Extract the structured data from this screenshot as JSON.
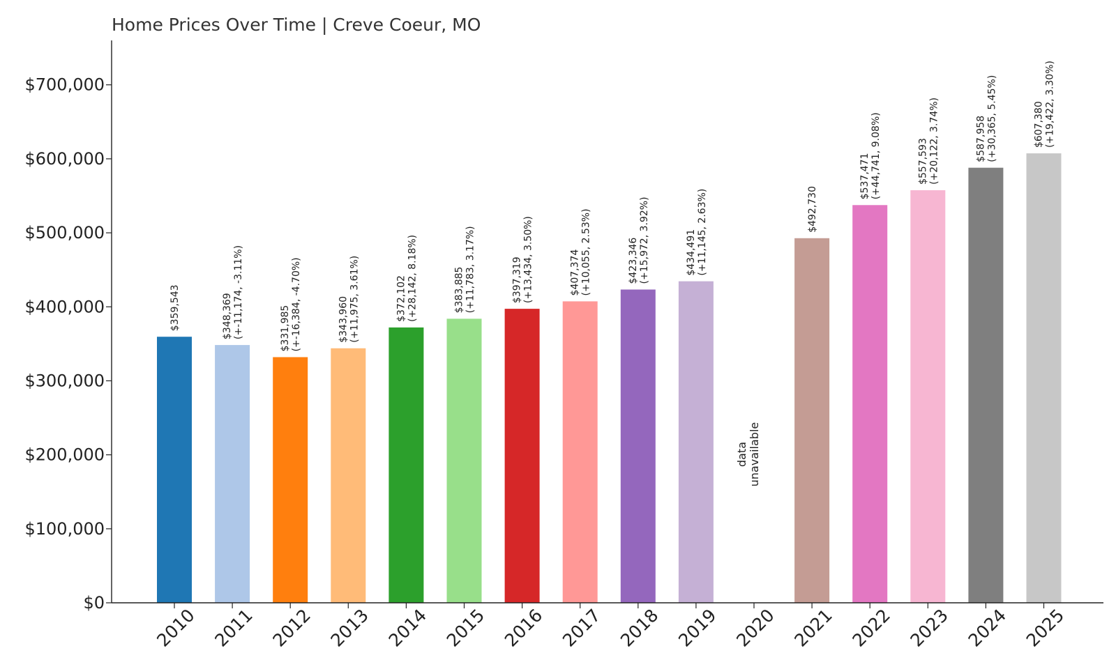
{
  "chart_data": {
    "type": "bar",
    "title": "Home Prices Over Time | Creve Coeur, MO",
    "xlabel": "",
    "ylabel": "",
    "ylim": [
      0,
      760000
    ],
    "yticks": [
      0,
      100000,
      200000,
      300000,
      400000,
      500000,
      600000,
      700000
    ],
    "ytick_labels": [
      "$0",
      "$100,000",
      "$200,000",
      "$300,000",
      "$400,000",
      "$500,000",
      "$600,000",
      "$700,000"
    ],
    "grid": false,
    "legend": "none",
    "categories": [
      "2010",
      "2011",
      "2012",
      "2013",
      "2014",
      "2015",
      "2016",
      "2017",
      "2018",
      "2019",
      "2020",
      "2021",
      "2022",
      "2023",
      "2024",
      "2025"
    ],
    "values": [
      359543,
      348369,
      331985,
      343960,
      372102,
      383885,
      397319,
      407374,
      423346,
      434491,
      null,
      492730,
      537471,
      557593,
      587958,
      607380
    ],
    "labels": [
      [
        "$359,543"
      ],
      [
        "$348,369",
        "(+-11,174, -3.11%)"
      ],
      [
        "$331,985",
        "(+-16,384, -4.70%)"
      ],
      [
        "$343,960",
        "(+11,975, 3.61%)"
      ],
      [
        "$372,102",
        "(+28,142, 8.18%)"
      ],
      [
        "$383,885",
        "(+11,783, 3.17%)"
      ],
      [
        "$397,319",
        "(+13,434, 3.50%)"
      ],
      [
        "$407,374",
        "(+10,055, 2.53%)"
      ],
      [
        "$423,346",
        "(+15,972, 3.92%)"
      ],
      [
        "$434,491",
        "(+11,145, 2.63%)"
      ],
      [
        "data",
        "unavailable"
      ],
      [
        "$492,730"
      ],
      [
        "$537,471",
        "(+44,741, 9.08%)"
      ],
      [
        "$557,593",
        "(+20,122, 3.74%)"
      ],
      [
        "$587,958",
        "(+30,365, 5.45%)"
      ],
      [
        "$607,380",
        "(+19,422, 3.30%)"
      ]
    ],
    "colors": [
      "#1f77b4",
      "#aec7e8",
      "#ff7f0e",
      "#ffbb78",
      "#2ca02c",
      "#98df8a",
      "#d62728",
      "#ff9896",
      "#9467bd",
      "#c5b0d5",
      "#ffffff",
      "#c49c94",
      "#e377c2",
      "#f7b6d2",
      "#7f7f7f",
      "#c7c7c7"
    ]
  }
}
